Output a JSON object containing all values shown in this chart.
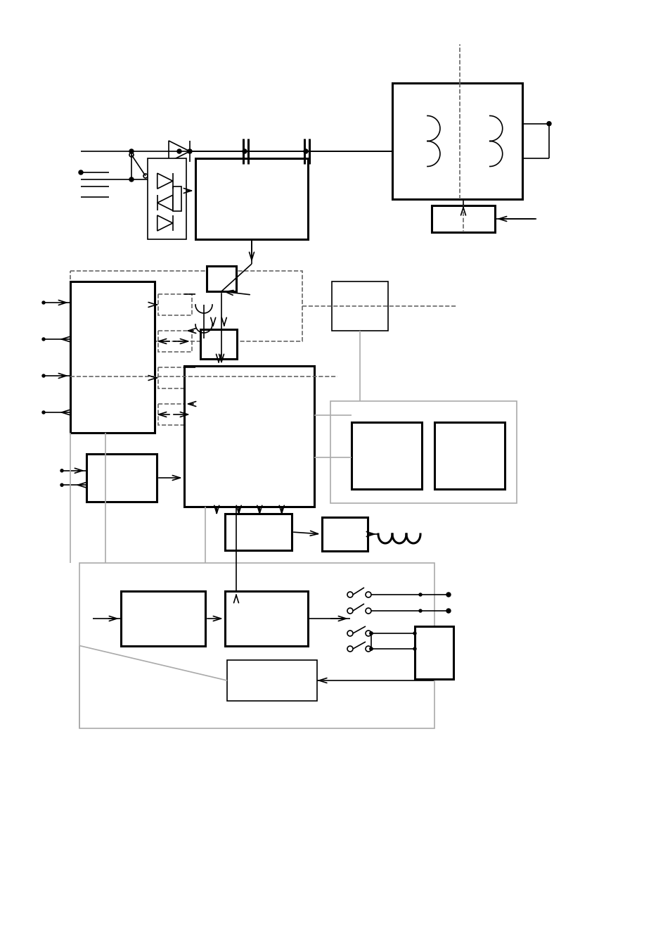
{
  "bg_color": "#ffffff",
  "lc": "#000000",
  "gray": "#aaaaaa",
  "tlw": 1.2,
  "klw": 2.2,
  "fig_w": 9.54,
  "fig_h": 13.5,
  "dpi": 100
}
